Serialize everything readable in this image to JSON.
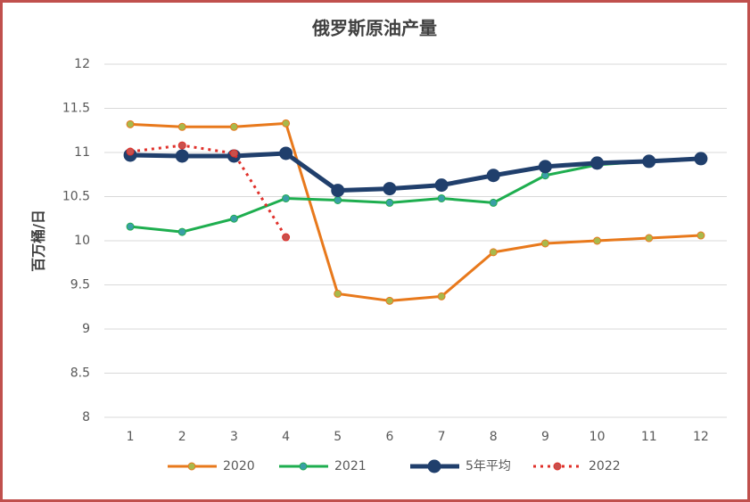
{
  "chart_data": {
    "type": "line",
    "title": "俄罗斯原油产量",
    "y_label": "百万桶/日",
    "categories": [
      1,
      2,
      3,
      4,
      5,
      6,
      7,
      8,
      9,
      10,
      11,
      12
    ],
    "series": [
      {
        "name": "2020",
        "color": "#e8791c",
        "marker_color": "#a8b94c",
        "values": [
          11.32,
          11.29,
          11.29,
          11.33,
          9.4,
          9.32,
          9.37,
          9.87,
          9.97,
          10.0,
          10.03,
          10.06
        ]
      },
      {
        "name": "2021",
        "color": "#1eae4f",
        "marker_color": "#3a9fa6",
        "values": [
          10.16,
          10.1,
          10.25,
          10.48,
          10.46,
          10.43,
          10.48,
          10.43,
          10.74,
          10.86,
          10.9,
          10.93
        ]
      },
      {
        "name": "5年平均",
        "color": "#203f6c",
        "marker_color": "#203f6c",
        "values": [
          10.97,
          10.96,
          10.96,
          10.99,
          10.57,
          10.59,
          10.63,
          10.74,
          10.84,
          10.88,
          10.9,
          10.93
        ]
      },
      {
        "name": "2022",
        "color": "#e0302a",
        "marker_color": "#c9504c",
        "dashed": true,
        "values": [
          11.01,
          11.08,
          10.99,
          10.04,
          null,
          null,
          null,
          null,
          null,
          null,
          null,
          null
        ]
      }
    ],
    "ylim": [
      8,
      12
    ],
    "yticks": [
      8,
      8.5,
      9,
      9.5,
      10,
      10.5,
      11,
      11.5,
      12
    ],
    "grid": true,
    "legend": "bottom"
  }
}
